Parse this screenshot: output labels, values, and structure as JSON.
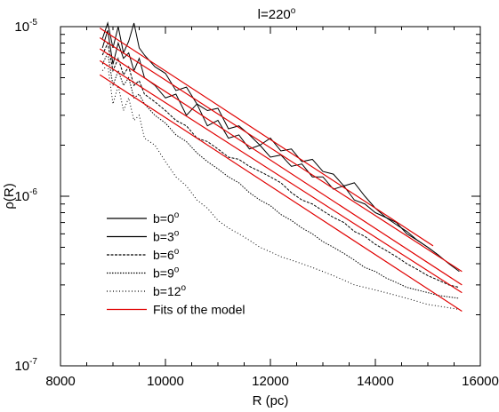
{
  "chart_data": {
    "type": "line",
    "title": "l=220°",
    "xlabel": "R (pc)",
    "ylabel": "ρ(R)",
    "xlim": [
      8000,
      16000
    ],
    "ylim": [
      1e-07,
      1e-05
    ],
    "yscale": "log",
    "x_ticks": [
      8000,
      10000,
      12000,
      14000,
      16000
    ],
    "y_ticks": [
      {
        "value": 1e-07,
        "label_base": "10",
        "label_exp": "-7"
      },
      {
        "value": 1e-06,
        "label_base": "10",
        "label_exp": "-6"
      },
      {
        "value": 1e-05,
        "label_base": "10",
        "label_exp": "-5"
      }
    ],
    "legend_position": "lower-left",
    "series": [
      {
        "name": "b=0°",
        "color": "#000000",
        "dash": "",
        "x": [
          8800,
          8900,
          9000,
          9100,
          9200,
          9300,
          9400,
          9500,
          9600,
          9800,
          10000,
          10200,
          10400,
          10600,
          10800,
          11000,
          11200,
          11400,
          11600,
          11800,
          12000,
          12200,
          12400,
          12600,
          12800,
          13000,
          13200,
          13400,
          13600,
          13800,
          14000,
          14200,
          14400,
          14600,
          14800,
          15000,
          15200
        ],
        "y": [
          8.5e-06,
          1.05e-05,
          7.5e-06,
          1e-05,
          7e-06,
          8.2e-06,
          1.05e-05,
          7.5e-06,
          6.8e-06,
          5.8e-06,
          5.3e-06,
          4.2e-06,
          4.4e-06,
          3.5e-06,
          3.2e-06,
          3.3e-06,
          2.5e-06,
          2.6e-06,
          2.3e-06,
          2e-06,
          2.2e-06,
          1.85e-06,
          1.9e-06,
          1.6e-06,
          1.65e-06,
          1.4e-06,
          1.35e-06,
          1.15e-06,
          1.2e-06,
          1e-06,
          8.5e-07,
          7.5e-07,
          7e-07,
          6e-07,
          5.5e-07,
          5e-07,
          4.5e-07
        ]
      },
      {
        "name": "b=3°",
        "color": "#000000",
        "dash": "",
        "x": [
          8800,
          8900,
          9000,
          9100,
          9200,
          9300,
          9400,
          9500,
          9600,
          9800,
          10000,
          10200,
          10400,
          10600,
          10800,
          11000,
          11200,
          11400,
          11600,
          11800,
          12000,
          12200,
          12400,
          12600,
          12800,
          13000,
          13200,
          13400,
          13600,
          13800,
          14000,
          14200,
          14400,
          14600,
          14800,
          15000,
          15200,
          15400,
          15600
        ],
        "y": [
          7.5e-06,
          9.5e-06,
          6e-06,
          8e-06,
          6.5e-06,
          7e-06,
          5.5e-06,
          6.5e-06,
          5e-06,
          4.5e-06,
          3.8e-06,
          4e-06,
          3e-06,
          3.5e-06,
          2.6e-06,
          2.8e-06,
          2.2e-06,
          2.3e-06,
          1.9e-06,
          2e-06,
          1.7e-06,
          1.75e-06,
          1.5e-06,
          1.55e-06,
          1.3e-06,
          1.3e-06,
          1.1e-06,
          1.15e-06,
          9.5e-07,
          9e-07,
          8e-07,
          7.5e-07,
          6.8e-07,
          6.2e-07,
          5.5e-07,
          5e-07,
          4.5e-07,
          4e-07,
          3.6e-07
        ]
      },
      {
        "name": "b=6°",
        "color": "#000000",
        "dash": "3,1.5",
        "x": [
          8800,
          8900,
          9000,
          9100,
          9200,
          9300,
          9400,
          9500,
          9600,
          9800,
          10000,
          10200,
          10400,
          10600,
          10800,
          11000,
          11200,
          11400,
          11600,
          11800,
          12000,
          12200,
          12400,
          12600,
          12800,
          13000,
          13200,
          13400,
          13600,
          13800,
          14000,
          14200,
          14400,
          14600,
          14800,
          15000,
          15200,
          15400,
          15600
        ],
        "y": [
          6.8e-06,
          8e-06,
          5.5e-06,
          6.5e-06,
          5.2e-06,
          5.8e-06,
          4.5e-06,
          4.8e-06,
          4e-06,
          3.6e-06,
          3.2e-06,
          2.8e-06,
          2.6e-06,
          2.2e-06,
          2.1e-06,
          1.9e-06,
          1.7e-06,
          1.65e-06,
          1.5e-06,
          1.4e-06,
          1.3e-06,
          1.2e-06,
          1.05e-06,
          9.5e-07,
          9e-07,
          8.2e-07,
          7.5e-07,
          7e-07,
          6.2e-07,
          5.8e-07,
          5.2e-07,
          4.8e-07,
          4.4e-07,
          4e-07,
          3.7e-07,
          3.4e-07,
          3.2e-07,
          3e-07,
          2.9e-07
        ]
      },
      {
        "name": "b=9°",
        "color": "#000000",
        "dash": "1.5,1.5",
        "x": [
          8800,
          8900,
          9000,
          9100,
          9200,
          9300,
          9400,
          9500,
          9600,
          9800,
          10000,
          10200,
          10400,
          10600,
          10800,
          11000,
          11200,
          11400,
          11600,
          11800,
          12000,
          12200,
          12400,
          12600,
          12800,
          13000,
          13200,
          13400,
          13600,
          13800,
          14000,
          14200,
          14400,
          14600,
          14800,
          15000,
          15200,
          15400,
          15600
        ],
        "y": [
          6e-06,
          7e-06,
          4.5e-06,
          5.5e-06,
          4.5e-06,
          5e-06,
          3.8e-06,
          4e-06,
          3.5e-06,
          3e-06,
          2.7e-06,
          2.3e-06,
          2.1e-06,
          1.8e-06,
          1.6e-06,
          1.45e-06,
          1.3e-06,
          1.2e-06,
          1.05e-06,
          9.5e-07,
          8.8e-07,
          7.8e-07,
          7.2e-07,
          6.5e-07,
          6e-07,
          5.4e-07,
          5e-07,
          4.6e-07,
          4.2e-07,
          3.8e-07,
          3.6e-07,
          3.3e-07,
          3.1e-07,
          2.9e-07,
          2.8e-07,
          2.7e-07,
          2.6e-07,
          2.55e-07,
          2.5e-07
        ]
      },
      {
        "name": "b=12°",
        "color": "#000000",
        "dash": "1,2.5",
        "x": [
          8800,
          8900,
          9000,
          9100,
          9200,
          9300,
          9400,
          9500,
          9600,
          9800,
          10000,
          10200,
          10400,
          10600,
          10800,
          11000,
          11200,
          11400,
          11600,
          11800,
          12000,
          12200,
          12400,
          12600,
          12800,
          13000,
          13200,
          13400,
          13600,
          13800,
          14000,
          14200,
          14400,
          14600,
          14800,
          15000,
          15200,
          15400,
          15600
        ],
        "y": [
          5.5e-06,
          6e-06,
          3.5e-06,
          4.5e-06,
          3.2e-06,
          3.8e-06,
          2.8e-06,
          3e-06,
          2.2e-06,
          2e-06,
          1.6e-06,
          1.3e-06,
          1.15e-06,
          9.5e-07,
          8.5e-07,
          7.2e-07,
          6.5e-07,
          6e-07,
          5.5e-07,
          5e-07,
          4.7e-07,
          4.4e-07,
          4.2e-07,
          4e-07,
          3.8e-07,
          3.6e-07,
          3.4e-07,
          3.2e-07,
          3e-07,
          2.9e-07,
          2.8e-07,
          2.7e-07,
          2.6e-07,
          2.5e-07,
          2.4e-07,
          2.3e-07,
          2.25e-07,
          2.2e-07,
          2.15e-07
        ]
      },
      {
        "name": "Fits of the model",
        "color": "#e00000",
        "dash": "",
        "fits": [
          {
            "x": [
              8750,
              15100
            ],
            "y": [
              9.8e-06,
              5.1e-07
            ]
          },
          {
            "x": [
              8750,
              15650
            ],
            "y": [
              8.6e-06,
              3.6e-07
            ]
          },
          {
            "x": [
              8750,
              15650
            ],
            "y": [
              7.4e-06,
              3e-07
            ]
          },
          {
            "x": [
              8750,
              15650
            ],
            "y": [
              6.3e-06,
              2.7e-07
            ]
          },
          {
            "x": [
              8750,
              15650
            ],
            "y": [
              5.2e-06,
              2.1e-07
            ]
          }
        ]
      }
    ]
  }
}
